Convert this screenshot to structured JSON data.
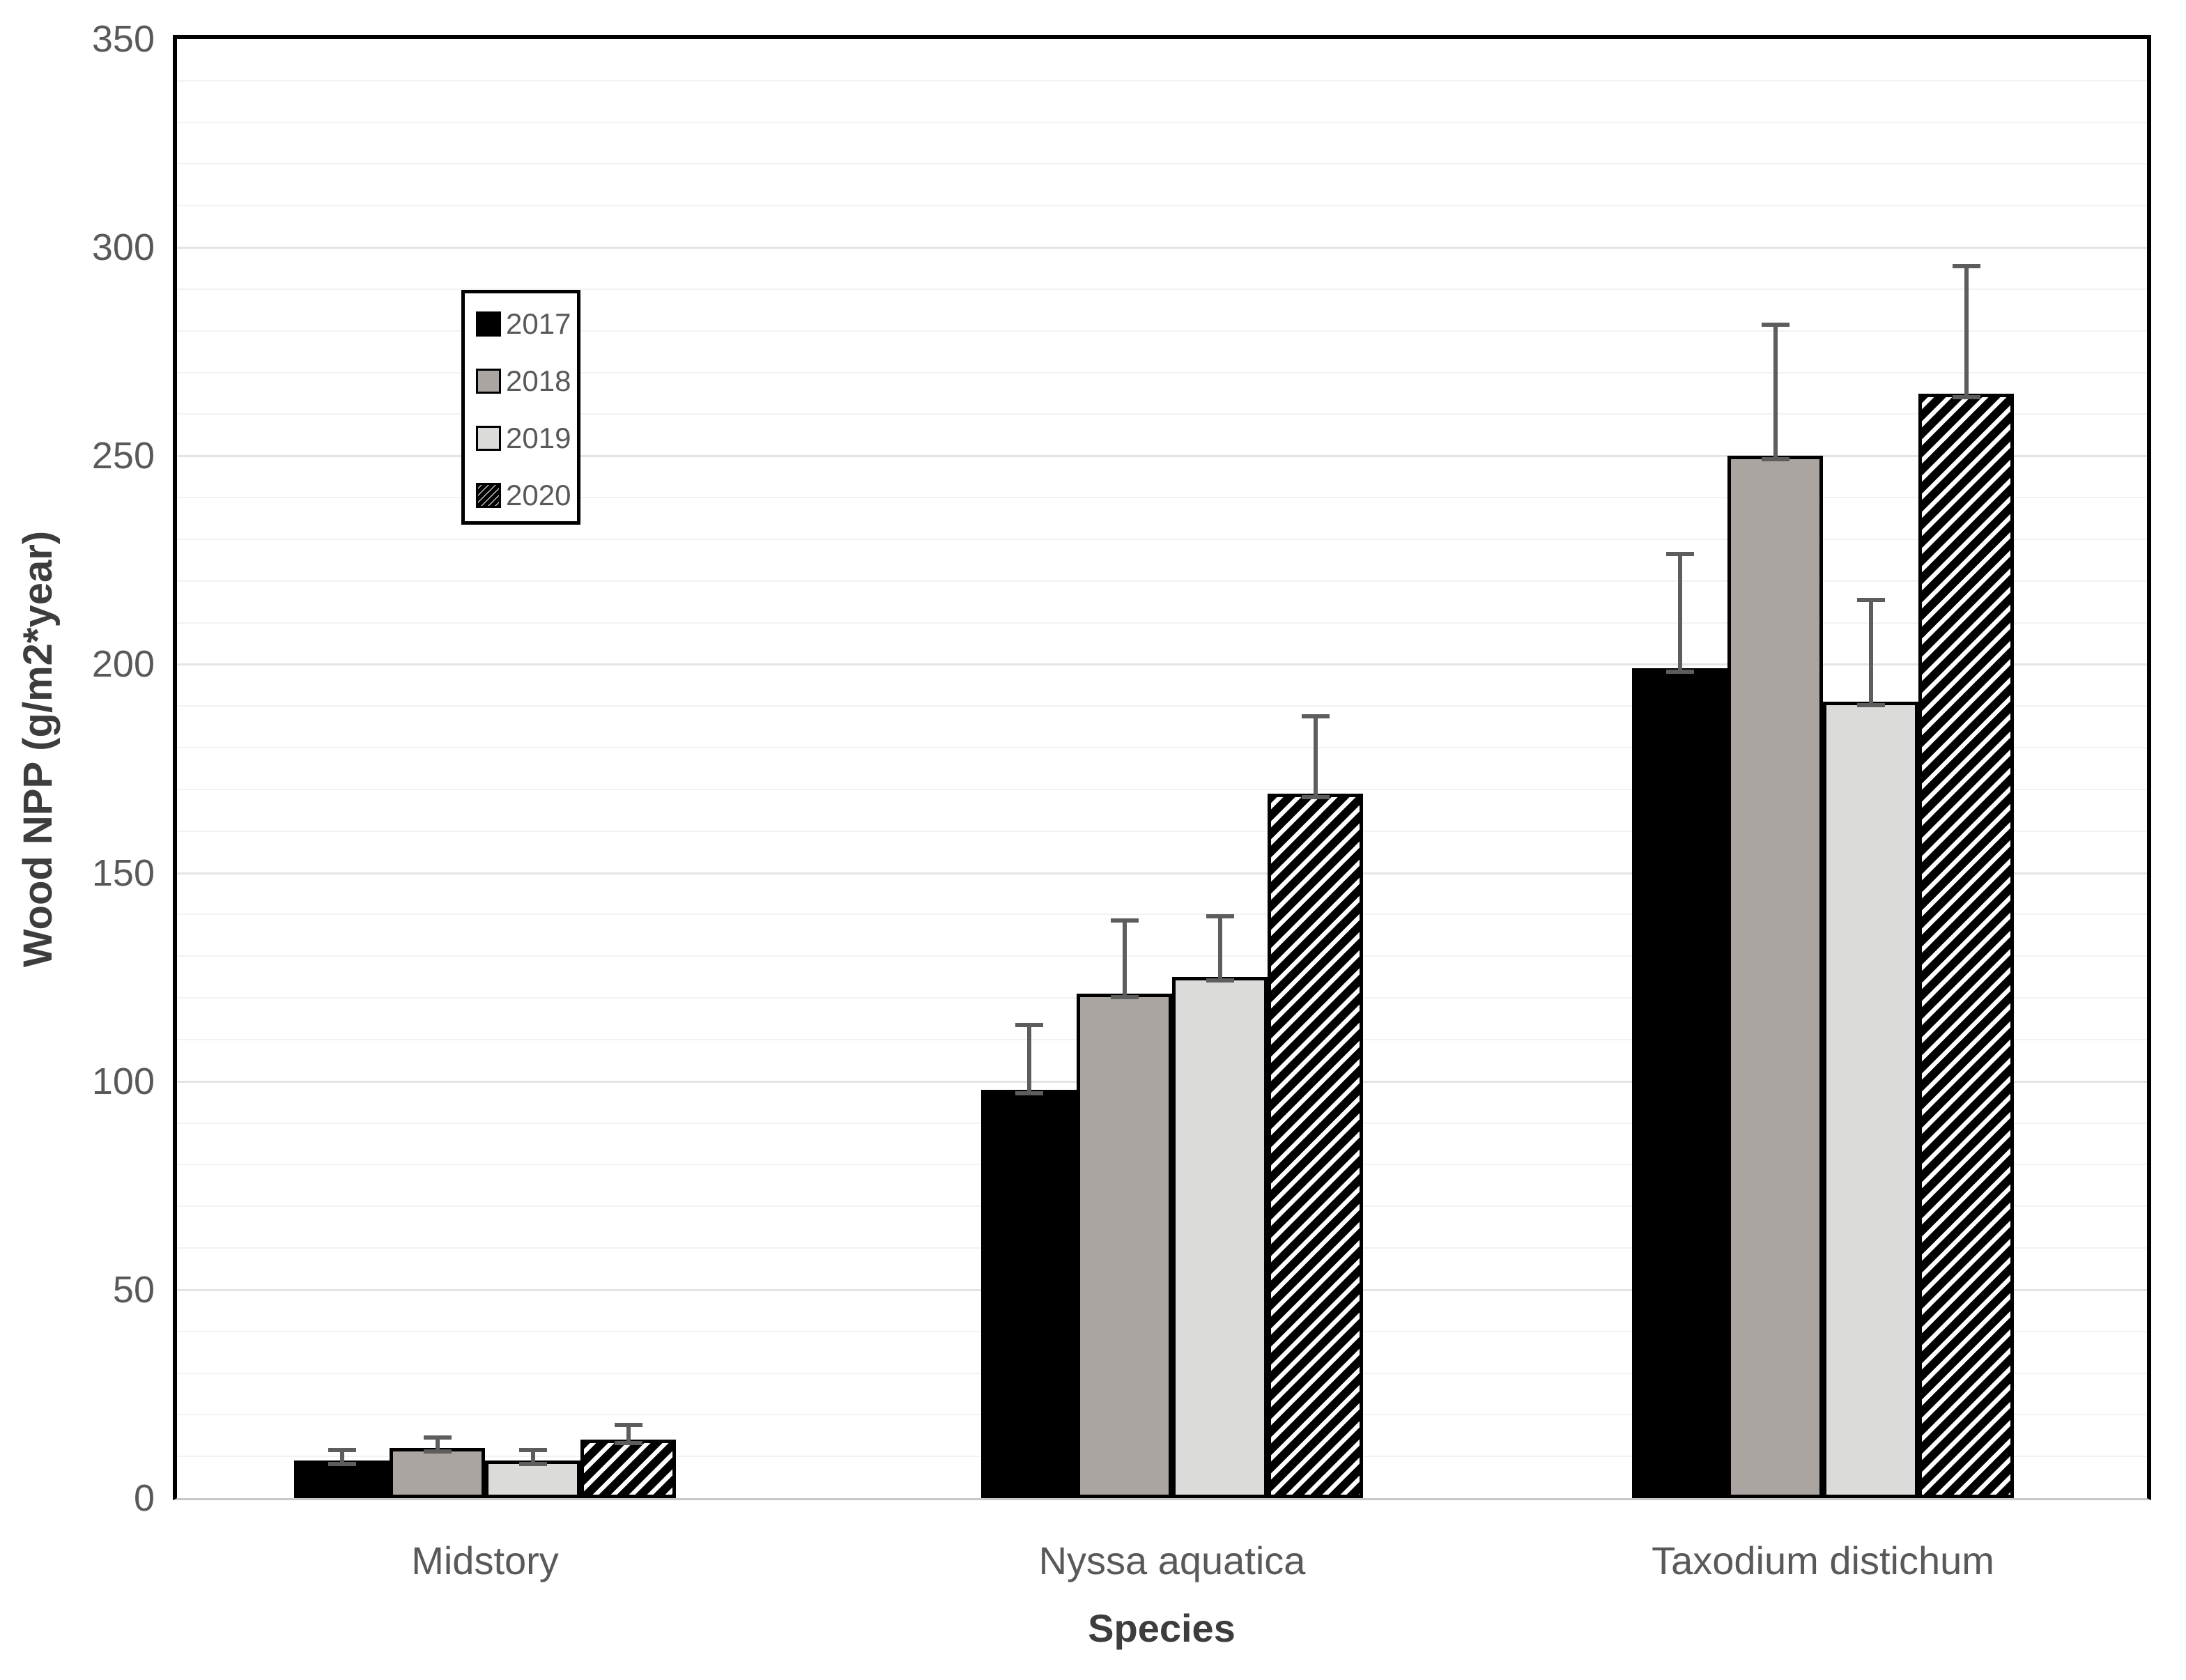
{
  "chart_data": {
    "type": "bar",
    "title": "",
    "xlabel": "Species",
    "ylabel": "Wood NPP (g/m2*year)",
    "categories": [
      "Midstory",
      "Nyssa aquatica",
      "Taxodium distichum"
    ],
    "series": [
      {
        "name": "2017",
        "fill": "#000000",
        "style": "solid",
        "values": [
          9,
          98,
          199
        ],
        "errors": [
          3,
          16,
          28
        ]
      },
      {
        "name": "2018",
        "fill": "#aaa5a1",
        "style": "solid",
        "values": [
          12,
          121,
          250
        ],
        "errors": [
          3,
          18,
          32
        ]
      },
      {
        "name": "2019",
        "fill": "#dbdbd9",
        "style": "solid",
        "values": [
          9,
          125,
          191
        ],
        "errors": [
          3,
          15,
          25
        ]
      },
      {
        "name": "2020",
        "fill": "#ffffff",
        "style": "hatch",
        "values": [
          14,
          169,
          265
        ],
        "errors": [
          4,
          19,
          31
        ]
      }
    ],
    "ylim": [
      0,
      350
    ],
    "yticks": [
      0,
      50,
      100,
      150,
      200,
      250,
      300,
      350
    ],
    "minor_grid_step": 10,
    "major_grid_step": 50,
    "grid": true,
    "legend_position": "upper-left-inside",
    "legend_entries": [
      "2017",
      "2018",
      "2019",
      "2020"
    ]
  },
  "colors": {
    "bar_border": "#000000",
    "error_bar": "#5d5d5d",
    "tick_text": "#595959",
    "axis_title_text": "#3d3d3d",
    "plot_border": "#000000",
    "baseline": "#c9c9c9",
    "grid_major": "#e4e4e4",
    "grid_minor": "#f2f2f2",
    "hatch_stripe": "#000000"
  }
}
